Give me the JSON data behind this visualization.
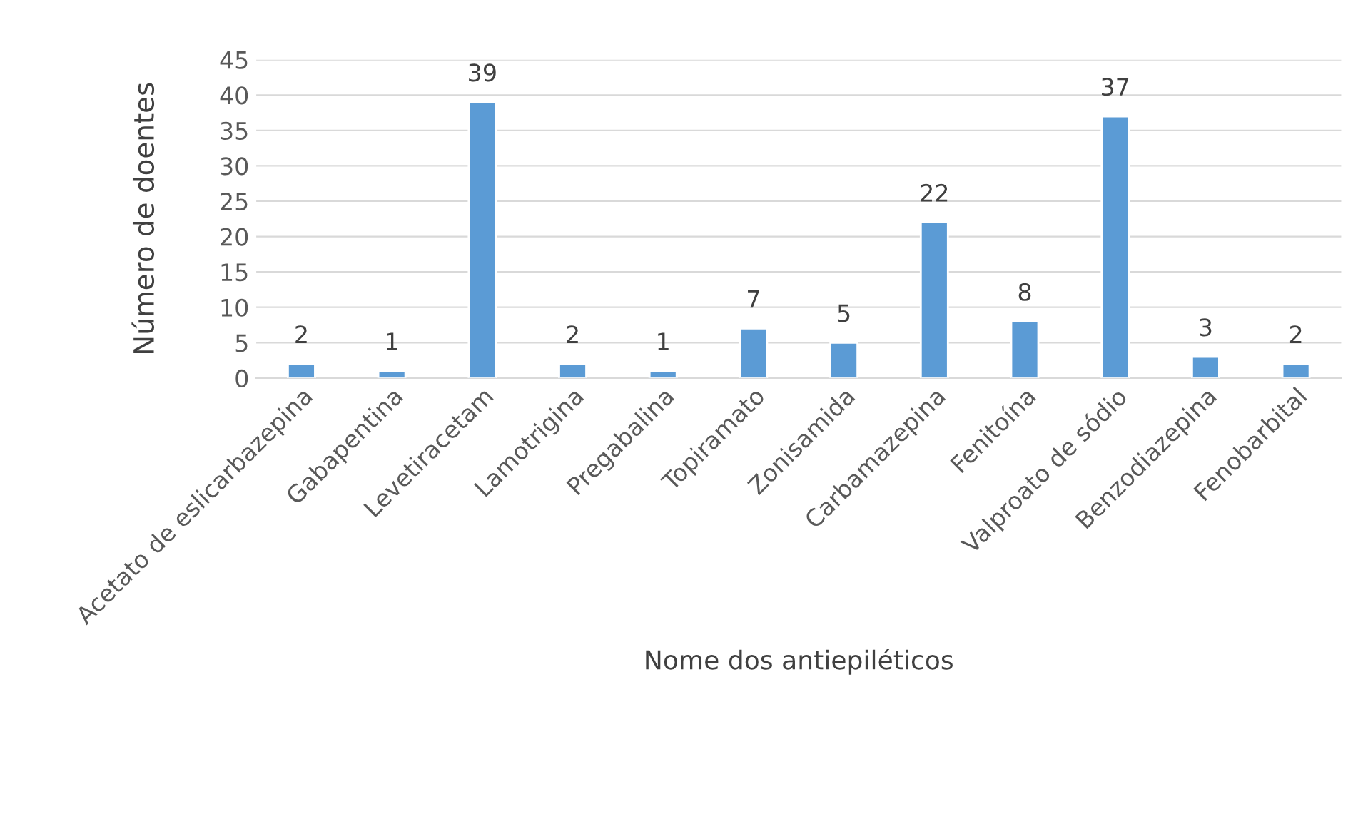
{
  "chart_data": {
    "type": "bar",
    "xlabel": "Nome dos antiepiléticos",
    "ylabel": "Número de doentes",
    "categories": [
      "Acetato de eslicarbazepina",
      "Gabapentina",
      "Levetiracetam",
      "Lamotrigina",
      "Pregabalina",
      "Topiramato",
      "Zonisamida",
      "Carbamazepina",
      "Fenitoína",
      "Valproato de sódio",
      "Benzodiazepina",
      "Fenobarbital"
    ],
    "values": [
      2,
      1,
      39,
      2,
      1,
      7,
      5,
      22,
      8,
      37,
      3,
      2
    ],
    "color": "#5b9bd5",
    "ylim": [
      0,
      45
    ],
    "yticks": [
      0,
      5,
      10,
      15,
      20,
      25,
      30,
      35,
      40,
      45
    ],
    "grid": "y",
    "data_labels": true,
    "legend": false
  }
}
